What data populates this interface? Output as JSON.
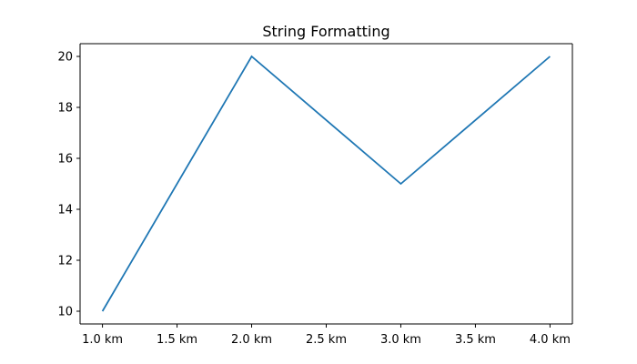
{
  "chart_data": {
    "type": "line",
    "title": "String Formatting",
    "xlabel": "",
    "ylabel": "",
    "x": [
      1.0,
      2.0,
      3.0,
      4.0
    ],
    "series": [
      {
        "values": [
          10,
          20,
          15,
          20
        ],
        "color": "#1f77b4"
      }
    ],
    "xlim": [
      0.85,
      4.15
    ],
    "ylim": [
      9.5,
      20.5
    ],
    "x_ticks": [
      1.0,
      1.5,
      2.0,
      2.5,
      3.0,
      3.5,
      4.0
    ],
    "x_tick_labels": [
      "1.0 km",
      "1.5 km",
      "2.0 km",
      "2.5 km",
      "3.0 km",
      "3.5 km",
      "4.0 km"
    ],
    "y_ticks": [
      10,
      12,
      14,
      16,
      18,
      20
    ],
    "y_tick_labels": [
      "10",
      "12",
      "14",
      "16",
      "18",
      "20"
    ],
    "grid": false,
    "legend": "none"
  }
}
